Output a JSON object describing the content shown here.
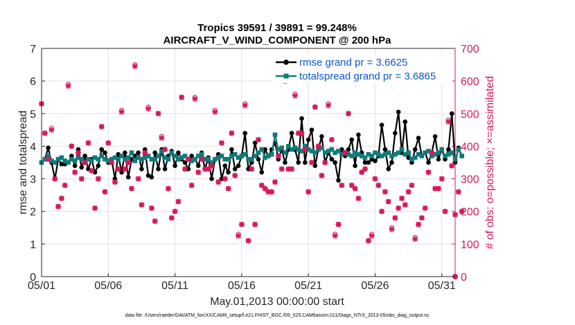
{
  "chart_data": {
    "type": "line",
    "title_line1": "Tropics 39591 / 39891 = 99.248%",
    "title_line2": "AIRCRAFT_V_WIND_COMPONENT @ 200 hPa",
    "xlabel": "May.01,2013 00:00:00 start",
    "ylabel_left": "rmse and totalspread",
    "ylabel_right": "# of obs: o=possible; ×=assimilated",
    "xlim": [
      1,
      32
    ],
    "ylim_left": [
      0,
      7
    ],
    "ylim_right": [
      0,
      700
    ],
    "x_ticks": [
      1,
      6,
      11,
      16,
      21,
      26,
      31
    ],
    "x_tick_labels": [
      "05/01",
      "05/06",
      "05/11",
      "05/16",
      "05/21",
      "05/26",
      "05/31"
    ],
    "y_ticks_left": [
      0,
      1,
      2,
      3,
      4,
      5,
      6,
      7
    ],
    "y_tick_labels_left": [
      "0",
      "1",
      "2",
      "3",
      "4",
      "5",
      "6",
      "7"
    ],
    "y_ticks_right": [
      0,
      100,
      200,
      300,
      400,
      500,
      600,
      700
    ],
    "y_tick_labels_right": [
      "0",
      "100",
      "200",
      "300",
      "400",
      "500",
      "600",
      "700"
    ],
    "x_step_days": 0.25,
    "x_start": 1,
    "series": [
      {
        "name": "rmse grand pr = 3.6625",
        "color": "#000000",
        "axis": "left",
        "values": [
          3.5,
          3.6,
          3.95,
          3.5,
          3.0,
          3.6,
          3.45,
          3.45,
          3.5,
          3.7,
          3.4,
          3.9,
          3.35,
          3.7,
          3.3,
          3.6,
          3.2,
          3.4,
          3.9,
          3.8,
          3.5,
          3.6,
          3.0,
          3.75,
          3.2,
          3.8,
          3.05,
          3.6,
          3.7,
          3.8,
          3.3,
          3.9,
          3.1,
          3.05,
          3.8,
          3.3,
          3.9,
          3.3,
          3.7,
          3.85,
          3.4,
          3.8,
          3.6,
          3.5,
          3.3,
          3.7,
          3.6,
          3.4,
          3.8,
          3.3,
          3.65,
          3.0,
          3.6,
          3.75,
          3.0,
          3.4,
          3.2,
          3.9,
          3.3,
          3.4,
          3.7,
          4.4,
          3.3,
          3.5,
          4.1,
          3.6,
          3.2,
          3.9,
          3.7,
          3.9,
          4.1,
          3.6,
          3.9,
          3.5,
          3.9,
          4.4,
          3.9,
          3.5,
          4.85,
          3.5,
          4.2,
          4.5,
          3.4,
          3.9,
          4.3,
          3.5,
          3.8,
          3.6,
          3.5,
          2.95,
          3.9,
          3.7,
          3.9,
          4.2,
          3.4,
          4.35,
          3.8,
          3.5,
          3.5,
          3.6,
          3.55,
          3.7,
          4.65,
          3.9,
          3.3,
          3.5,
          4.4,
          5.05,
          3.8,
          4.75,
          3.65,
          3.5,
          3.9,
          4.25,
          3.7,
          3.8,
          3.5,
          3.8,
          4.3,
          3.6,
          3.9,
          3.6,
          3.9,
          5.0,
          3.5,
          3.95,
          3.7
        ],
        "marker": "star"
      },
      {
        "name": "totalspread grand pr = 3.6865",
        "color": "#117a7a",
        "axis": "left",
        "values": [
          3.5,
          3.6,
          3.7,
          3.55,
          3.5,
          3.6,
          3.65,
          3.55,
          3.5,
          3.6,
          3.55,
          3.65,
          3.6,
          3.5,
          3.6,
          3.55,
          3.65,
          3.6,
          3.7,
          3.6,
          3.55,
          3.6,
          3.65,
          3.6,
          3.7,
          3.6,
          3.65,
          3.8,
          3.55,
          3.65,
          3.6,
          3.65,
          3.7,
          3.6,
          3.6,
          3.7,
          3.85,
          3.65,
          3.6,
          3.8,
          3.7,
          3.6,
          3.65,
          3.7,
          3.6,
          3.55,
          3.6,
          3.7,
          3.75,
          3.6,
          3.6,
          3.5,
          3.6,
          3.65,
          3.7,
          3.6,
          3.6,
          3.7,
          3.75,
          3.65,
          3.7,
          3.75,
          3.6,
          3.6,
          3.7,
          3.8,
          3.9,
          3.65,
          3.7,
          3.75,
          4.35,
          3.9,
          3.95,
          3.8,
          4.0,
          3.9,
          3.95,
          3.9,
          3.85,
          4.0,
          3.9,
          3.85,
          3.8,
          3.9,
          3.95,
          3.8,
          3.85,
          3.9,
          3.8,
          3.85,
          3.75,
          3.8,
          3.75,
          3.7,
          3.8,
          3.75,
          3.7,
          3.65,
          3.75,
          3.7,
          3.8,
          3.75,
          3.7,
          3.75,
          3.8,
          3.7,
          3.75,
          3.8,
          3.9,
          3.75,
          3.8,
          3.6,
          3.65,
          3.75,
          3.7,
          3.8,
          3.85,
          3.7,
          3.75,
          3.8,
          3.9,
          3.7,
          3.75,
          3.8,
          3.6,
          3.9,
          3.7
        ],
        "marker": "square"
      },
      {
        "name": "# obs possible",
        "color": "#d6185a",
        "axis": "right",
        "values": [
          530,
          440,
          360,
          455,
          300,
          215,
          240,
          280,
          590,
          400,
          320,
          380,
          300,
          350,
          410,
          325,
          210,
          300,
          460,
          260,
          410,
          350,
          290,
          330,
          510,
          330,
          350,
          270,
          650,
          300,
          220,
          380,
          520,
          210,
          170,
          500,
          430,
          390,
          270,
          180,
          200,
          230,
          550,
          330,
          360,
          280,
          550,
          320,
          360,
          330,
          330,
          340,
          510,
          290,
          410,
          300,
          270,
          440,
          310,
          130,
          160,
          530,
          110,
          330,
          160,
          420,
          280,
          270,
          260,
          260,
          290,
          370,
          330,
          600,
          330,
          330,
          560,
          440,
          440,
          390,
          260,
          350,
          520,
          400,
          310,
          350,
          530,
          420,
          130,
          160,
          280,
          380,
          500,
          280,
          270,
          240,
          320,
          330,
          110,
          130,
          300,
          280,
          200,
          260,
          230,
          150,
          180,
          210,
          240,
          220,
          260,
          280,
          120,
          160,
          180,
          210,
          320,
          380,
          270,
          270,
          300,
          200,
          480,
          340,
          190,
          260,
          200
        ],
        "marker": "circle"
      },
      {
        "name": "# obs assimilated",
        "color": "#d6185a",
        "axis": "right",
        "values": [
          530,
          440,
          360,
          450,
          300,
          215,
          240,
          280,
          585,
          400,
          320,
          380,
          300,
          350,
          410,
          325,
          210,
          300,
          460,
          260,
          410,
          350,
          290,
          330,
          505,
          330,
          350,
          270,
          645,
          300,
          220,
          380,
          515,
          210,
          170,
          500,
          425,
          390,
          270,
          180,
          200,
          230,
          550,
          330,
          360,
          280,
          545,
          320,
          360,
          330,
          330,
          340,
          505,
          290,
          410,
          300,
          270,
          440,
          310,
          125,
          160,
          525,
          110,
          330,
          160,
          420,
          280,
          270,
          260,
          260,
          290,
          370,
          330,
          600,
          330,
          330,
          555,
          440,
          440,
          390,
          260,
          350,
          520,
          400,
          310,
          350,
          525,
          420,
          125,
          160,
          280,
          380,
          500,
          280,
          270,
          240,
          320,
          330,
          110,
          125,
          300,
          280,
          200,
          260,
          230,
          145,
          180,
          210,
          240,
          220,
          260,
          280,
          115,
          160,
          180,
          210,
          320,
          380,
          270,
          270,
          300,
          200,
          475,
          340,
          190,
          260,
          200
        ],
        "marker": "x"
      }
    ],
    "legend": {
      "placement": "top-right",
      "entries": [
        "rmse grand pr = 3.6625",
        "totalspread grand pr = 3.6865"
      ]
    },
    "footnote": "data file: /Users/raeder/DAI/ATM_forcXX/CAM6_setup/f.e21.FHIST_BGC.f09_025.CAM6assim.011/Diags_NTrS_2013-05/obs_diag_output.nc"
  },
  "colors": {
    "rmse": "#000000",
    "spread": "#117a7a",
    "obs": "#d6185a",
    "legend_text": "#0b57d0"
  }
}
